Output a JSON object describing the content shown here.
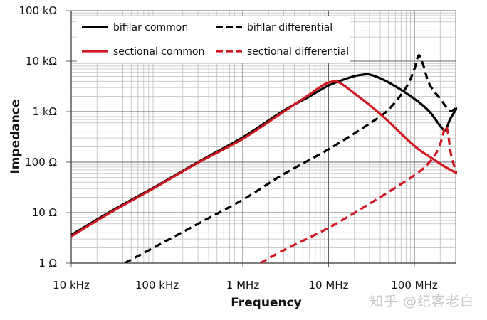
{
  "chart_data": {
    "type": "line",
    "title": "",
    "xlabel": "Frequency",
    "ylabel": "Impedance",
    "xscale": "log",
    "yscale": "log",
    "xlim": [
      10000,
      316000000
    ],
    "ylim": [
      1,
      100000
    ],
    "grid": true,
    "legend_position": "top-left",
    "x_ticks": [
      {
        "value": 10000,
        "label": "10 kHz"
      },
      {
        "value": 100000,
        "label": "100 kHz"
      },
      {
        "value": 1000000,
        "label": "1 MHz"
      },
      {
        "value": 10000000,
        "label": "10 MHz"
      },
      {
        "value": 100000000,
        "label": "100 MHz"
      }
    ],
    "y_ticks": [
      {
        "value": 1,
        "label": "1 Ω"
      },
      {
        "value": 10,
        "label": "10 Ω"
      },
      {
        "value": 100,
        "label": "100 Ω"
      },
      {
        "value": 1000,
        "label": "1 kΩ"
      },
      {
        "value": 10000,
        "label": "10 kΩ"
      },
      {
        "value": 100000,
        "label": "100 kΩ"
      }
    ],
    "series": [
      {
        "name": "bifilar common",
        "color": "#000000",
        "dash": "solid",
        "points": [
          [
            10000,
            3.6
          ],
          [
            30000,
            11
          ],
          [
            100000,
            34
          ],
          [
            300000,
            100
          ],
          [
            1000000,
            310
          ],
          [
            3000000,
            1050
          ],
          [
            6000000,
            2000
          ],
          [
            10000000,
            3300
          ],
          [
            18000000,
            4800
          ],
          [
            25000000,
            5400
          ],
          [
            32000000,
            5300
          ],
          [
            50000000,
            3800
          ],
          [
            100000000,
            1800
          ],
          [
            150000000,
            1000
          ],
          [
            200000000,
            520
          ],
          [
            230000000,
            430
          ],
          [
            260000000,
            700
          ],
          [
            316000000,
            1200
          ]
        ]
      },
      {
        "name": "bifilar differential",
        "color": "#000000",
        "dash": "dashed",
        "points": [
          [
            42000,
            1
          ],
          [
            100000,
            2.2
          ],
          [
            300000,
            6
          ],
          [
            1000000,
            18
          ],
          [
            3000000,
            58
          ],
          [
            10000000,
            180
          ],
          [
            30000000,
            580
          ],
          [
            50000000,
            1100
          ],
          [
            80000000,
            3000
          ],
          [
            100000000,
            7000
          ],
          [
            112000000,
            13000
          ],
          [
            125000000,
            9000
          ],
          [
            150000000,
            3500
          ],
          [
            200000000,
            1800
          ],
          [
            260000000,
            1050
          ],
          [
            316000000,
            1250
          ]
        ]
      },
      {
        "name": "sectional common",
        "color": "#d0161e",
        "dash": "solid",
        "points": [
          [
            10000,
            3.4
          ],
          [
            30000,
            10.5
          ],
          [
            100000,
            33
          ],
          [
            300000,
            97
          ],
          [
            1000000,
            290
          ],
          [
            3000000,
            1000
          ],
          [
            6000000,
            2200
          ],
          [
            9000000,
            3500
          ],
          [
            11500000,
            3950
          ],
          [
            14000000,
            3600
          ],
          [
            20000000,
            2300
          ],
          [
            40000000,
            900
          ],
          [
            100000000,
            210
          ],
          [
            160000000,
            120
          ],
          [
            230000000,
            80
          ],
          [
            316000000,
            60
          ]
        ]
      },
      {
        "name": "sectional differential",
        "color": "#d0161e",
        "dash": "dashed",
        "points": [
          [
            1600000,
            1
          ],
          [
            3000000,
            1.8
          ],
          [
            10000000,
            5
          ],
          [
            30000000,
            15
          ],
          [
            100000000,
            55
          ],
          [
            150000000,
            100
          ],
          [
            190000000,
            180
          ],
          [
            215000000,
            350
          ],
          [
            230000000,
            520
          ],
          [
            245000000,
            400
          ],
          [
            270000000,
            130
          ],
          [
            316000000,
            58
          ]
        ]
      }
    ]
  },
  "watermark": "知乎 @纪客老白"
}
